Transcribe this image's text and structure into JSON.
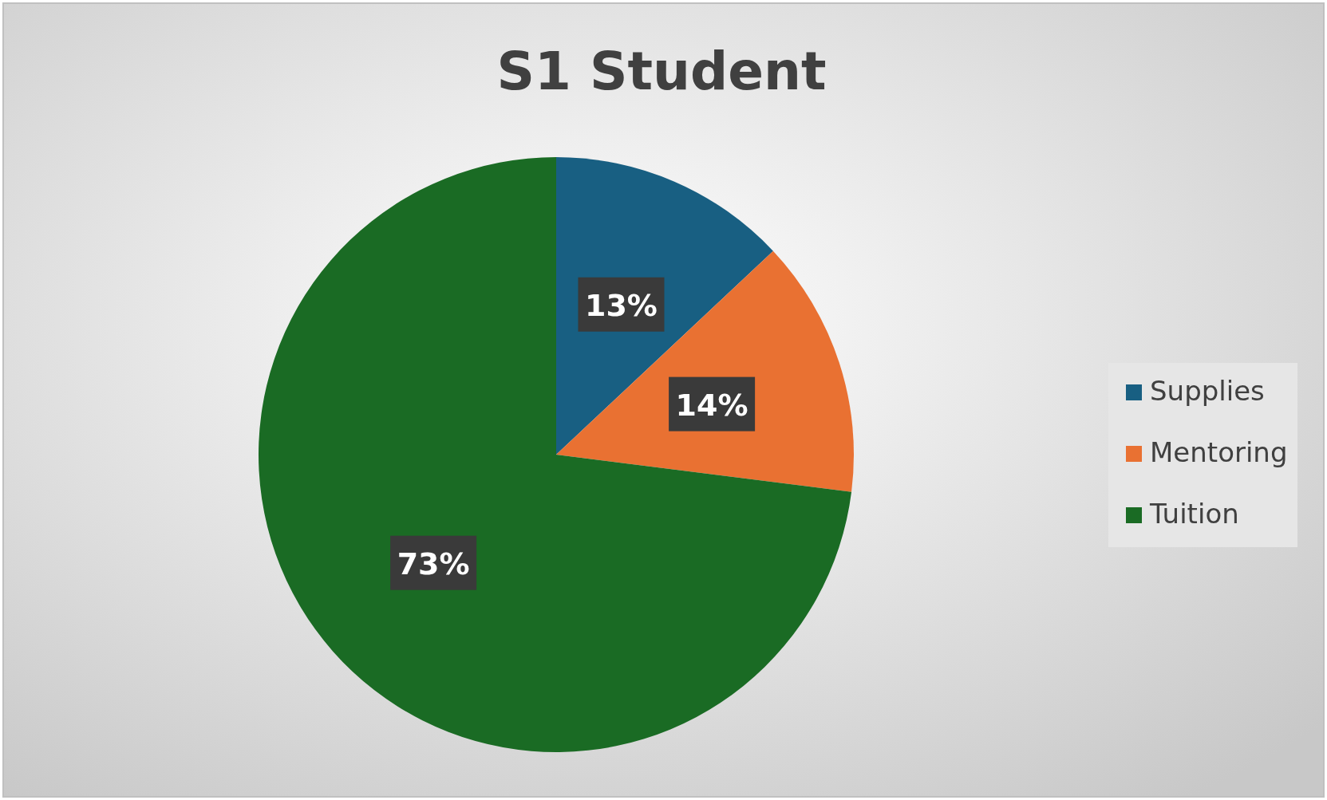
{
  "chart_data": {
    "type": "pie",
    "title": "S1 Student",
    "categories": [
      "Supplies",
      "Mentoring",
      "Tuition"
    ],
    "values": [
      13,
      14,
      73
    ],
    "colors": [
      "#185f82",
      "#e97132",
      "#1a6b24"
    ],
    "value_labels": [
      "13%",
      "14%",
      "73%"
    ],
    "legend": "right"
  }
}
